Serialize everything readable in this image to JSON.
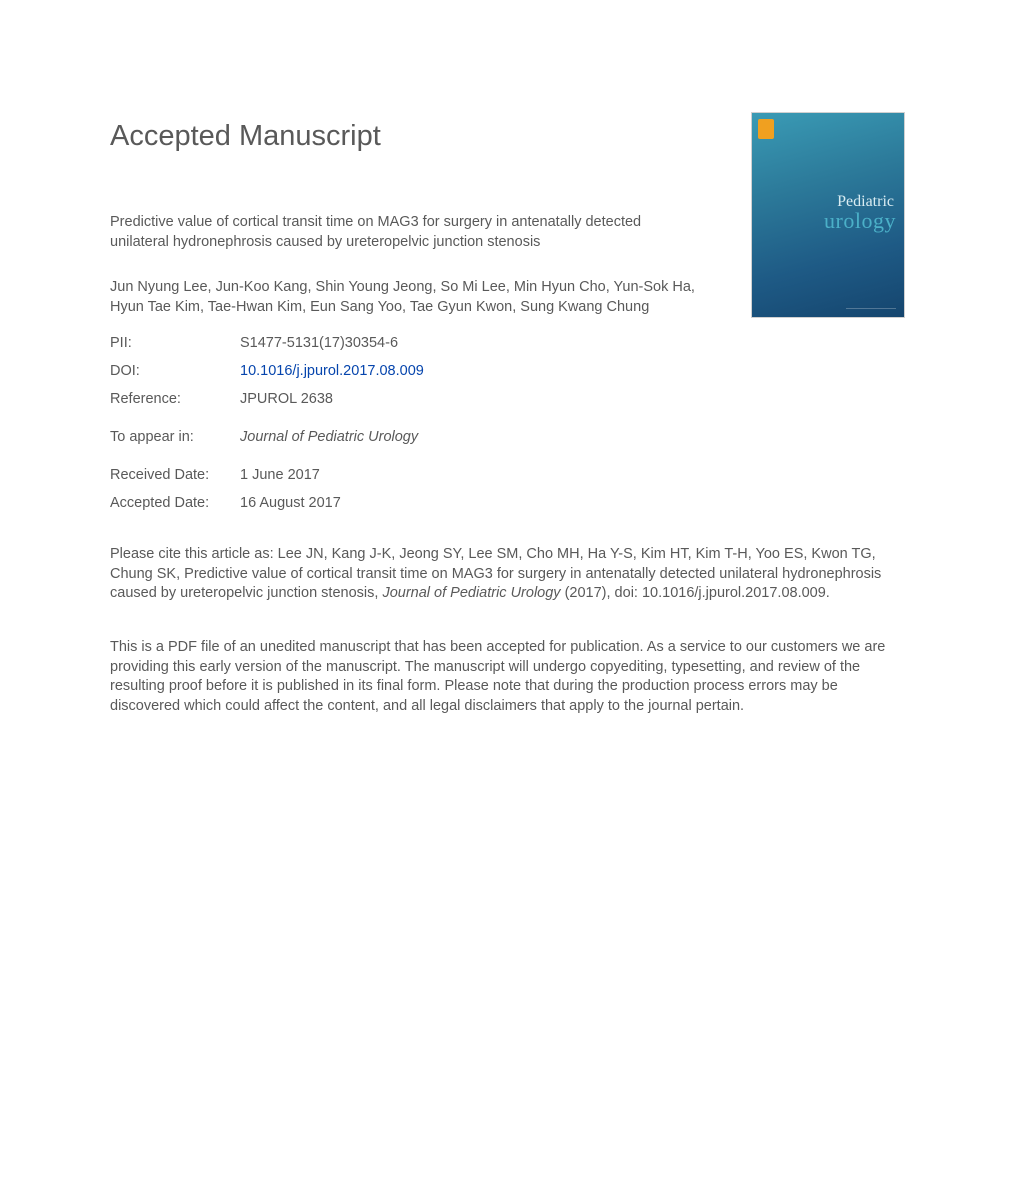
{
  "heading": "Accepted Manuscript",
  "cover": {
    "top_word": "Pediatric",
    "bot_word": "urology"
  },
  "article": {
    "title": "Predictive value of cortical transit time on MAG3 for surgery in antenatally detected unilateral hydronephrosis caused by ureteropelvic junction stenosis",
    "authors": "Jun Nyung Lee, Jun-Koo Kang, Shin Young Jeong, So Mi Lee, Min Hyun Cho, Yun-Sok Ha, Hyun Tae Kim, Tae-Hwan Kim, Eun Sang Yoo, Tae Gyun Kwon, Sung Kwang Chung"
  },
  "meta": {
    "pii_label": "PII:",
    "pii_value": "S1477-5131(17)30354-6",
    "doi_label": "DOI:",
    "doi_value": "10.1016/j.jpurol.2017.08.009",
    "ref_label": "Reference:",
    "ref_value": "JPUROL 2638"
  },
  "appear": {
    "label": "To appear in:",
    "journal": "Journal of Pediatric Urology"
  },
  "dates": {
    "received_label": "Received Date:",
    "received_value": "1 June 2017",
    "accepted_label": "Accepted Date:",
    "accepted_value": "16 August 2017"
  },
  "citation": {
    "prefix": "Please cite this article as: Lee JN, Kang J-K, Jeong SY, Lee SM, Cho MH, Ha Y-S, Kim HT, Kim T-H, Yoo ES, Kwon TG, Chung SK, Predictive value of cortical transit time on MAG3 for surgery in antenatally detected unilateral hydronephrosis caused by ureteropelvic junction stenosis, ",
    "journal": "Journal of Pediatric Urology",
    "suffix": " (2017), doi: 10.1016/j.jpurol.2017.08.009."
  },
  "disclaimer": "This is a PDF file of an unedited manuscript that has been accepted for publication. As a service to our customers we are providing this early version of the manuscript. The manuscript will undergo copyediting, typesetting, and review of the resulting proof before it is published in its final form. Please note that during the production process errors may be discovered which could affect the content, and all legal disclaimers that apply to the journal pertain."
}
